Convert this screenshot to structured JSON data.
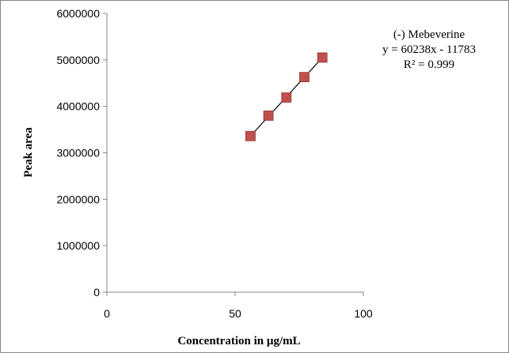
{
  "chart_data": {
    "type": "scatter",
    "xlabel": "Concentration in µg/mL",
    "ylabel": "Peak area",
    "xlim": [
      0,
      100
    ],
    "ylim": [
      0,
      6000000
    ],
    "x_ticks": [
      "0",
      "50",
      "100"
    ],
    "y_ticks": [
      "0",
      "1000000",
      "2000000",
      "3000000",
      "4000000",
      "5000000",
      "6000000"
    ],
    "grid": false,
    "legend": "none",
    "series": [
      {
        "points": [
          {
            "x": 56,
            "y": 3360000
          },
          {
            "x": 63,
            "y": 3800000
          },
          {
            "x": 70,
            "y": 4190000
          },
          {
            "x": 77,
            "y": 4630000
          },
          {
            "x": 84,
            "y": 5050000
          }
        ],
        "marker": "square",
        "color": "#c0504d",
        "trendline": {
          "type": "linear",
          "slope": 60238,
          "intercept": -11783
        }
      }
    ],
    "annotation": {
      "line1": "(-) Mebeverine",
      "line2": "y = 60238x - 11783",
      "line3": "R² = 0.999"
    }
  }
}
